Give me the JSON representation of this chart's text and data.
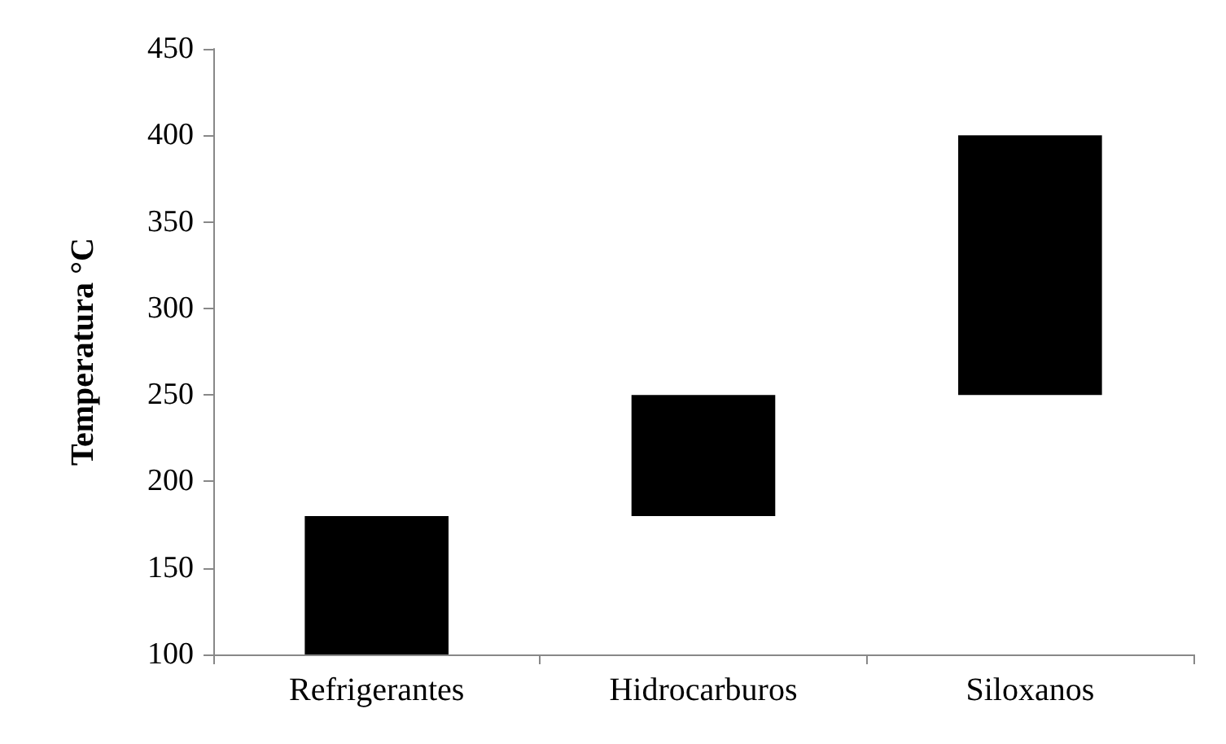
{
  "chart_data": {
    "type": "bar",
    "ylabel": "Temperatura °C",
    "categories": [
      "Refrigerantes",
      "Hidrocarburos",
      "Siloxanos"
    ],
    "base": [
      100,
      180,
      250
    ],
    "values": [
      80,
      70,
      150
    ],
    "color": "#000000",
    "ylim": [
      100,
      450
    ],
    "yticks": [
      100,
      150,
      200,
      250,
      300,
      350,
      400,
      450
    ],
    "grid": false
  }
}
